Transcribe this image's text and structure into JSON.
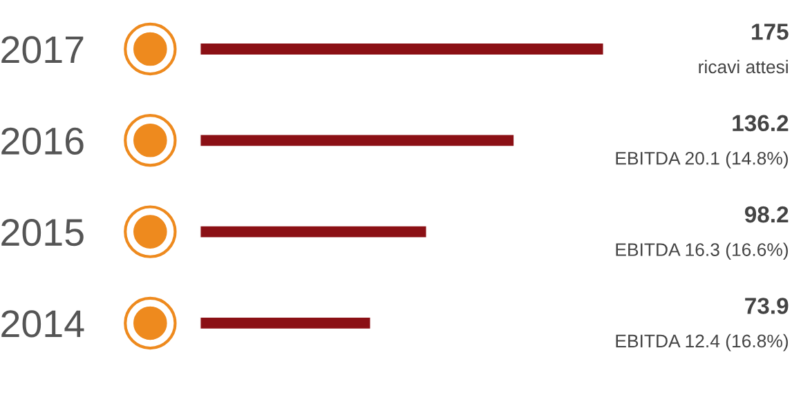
{
  "chart_data": {
    "type": "bar",
    "orientation": "horizontal",
    "categories": [
      "2017",
      "2016",
      "2015",
      "2014"
    ],
    "values": [
      175,
      136.2,
      98.2,
      73.9
    ],
    "color": "#8b1015",
    "data_labels": true,
    "tick_labels": "y",
    "grid": false,
    "legend": false,
    "annotations": [
      "ricavi attesi",
      "EBITDA 20.1 (14.8%)",
      "EBITDA 16.3 (16.6%)",
      "EBITDA 12.4 (16.8%)"
    ]
  }
}
